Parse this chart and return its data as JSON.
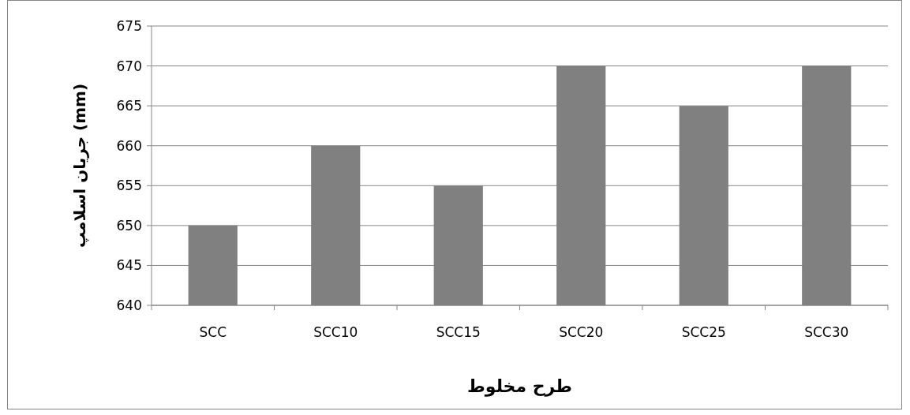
{
  "chart_data": {
    "type": "bar",
    "xlabel": "طرح مخلوط",
    "ylabel": "جریان اسلامپ (mm)",
    "categories": [
      "SCC",
      "SCC10",
      "SCC15",
      "SCC20",
      "SCC25",
      "SCC30"
    ],
    "values": [
      650,
      660,
      655,
      670,
      665,
      670
    ],
    "color": "#808080",
    "ylim": [
      640,
      675
    ],
    "yticks": [
      640,
      645,
      650,
      655,
      660,
      665,
      670,
      675
    ],
    "grid": "y"
  }
}
